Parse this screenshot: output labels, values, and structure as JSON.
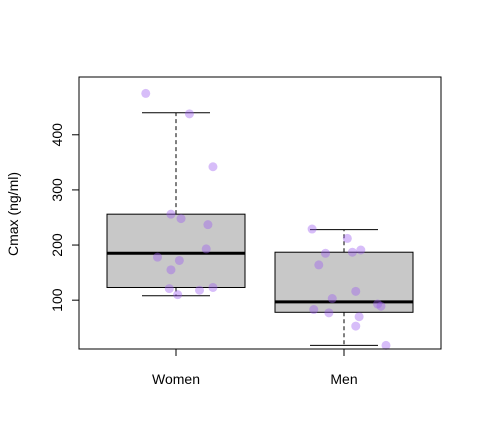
{
  "chart_data": {
    "type": "boxplot",
    "title": "",
    "xlabel": "",
    "ylabel": "Cmax (ng/ml)",
    "categories": [
      "Women",
      "Men"
    ],
    "ylim": [
      0,
      480
    ],
    "yticks": [
      100,
      200,
      300,
      400
    ],
    "box_fill": "#c8c8c8",
    "point_color": "#9b59f0",
    "boxes": [
      {
        "name": "Women",
        "whisker_low": 108,
        "q1": 123,
        "median": 185,
        "q3": 256,
        "whisker_high": 440
      },
      {
        "name": "Men",
        "whisker_low": 18,
        "q1": 78,
        "median": 97,
        "q3": 187,
        "whisker_high": 228
      }
    ],
    "points": [
      {
        "group": "Women",
        "x": 0.82,
        "y": 475
      },
      {
        "group": "Women",
        "x": 1.08,
        "y": 438
      },
      {
        "group": "Women",
        "x": 1.22,
        "y": 342
      },
      {
        "group": "Women",
        "x": 0.97,
        "y": 256
      },
      {
        "group": "Women",
        "x": 1.03,
        "y": 248
      },
      {
        "group": "Women",
        "x": 1.19,
        "y": 237
      },
      {
        "group": "Women",
        "x": 1.18,
        "y": 193
      },
      {
        "group": "Women",
        "x": 0.89,
        "y": 178
      },
      {
        "group": "Women",
        "x": 1.02,
        "y": 172
      },
      {
        "group": "Women",
        "x": 0.97,
        "y": 155
      },
      {
        "group": "Women",
        "x": 0.96,
        "y": 121
      },
      {
        "group": "Women",
        "x": 1.14,
        "y": 118
      },
      {
        "group": "Women",
        "x": 1.22,
        "y": 123
      },
      {
        "group": "Women",
        "x": 1.01,
        "y": 110
      },
      {
        "group": "Men",
        "x": 1.81,
        "y": 229
      },
      {
        "group": "Men",
        "x": 2.02,
        "y": 212
      },
      {
        "group": "Men",
        "x": 2.1,
        "y": 191
      },
      {
        "group": "Men",
        "x": 2.05,
        "y": 187
      },
      {
        "group": "Men",
        "x": 1.89,
        "y": 185
      },
      {
        "group": "Men",
        "x": 1.85,
        "y": 164
      },
      {
        "group": "Men",
        "x": 2.07,
        "y": 116
      },
      {
        "group": "Men",
        "x": 1.93,
        "y": 103
      },
      {
        "group": "Men",
        "x": 2.2,
        "y": 93
      },
      {
        "group": "Men",
        "x": 2.22,
        "y": 89
      },
      {
        "group": "Men",
        "x": 1.82,
        "y": 83
      },
      {
        "group": "Men",
        "x": 1.91,
        "y": 77
      },
      {
        "group": "Men",
        "x": 2.09,
        "y": 70
      },
      {
        "group": "Men",
        "x": 2.07,
        "y": 53
      },
      {
        "group": "Men",
        "x": 2.25,
        "y": 18
      }
    ]
  }
}
